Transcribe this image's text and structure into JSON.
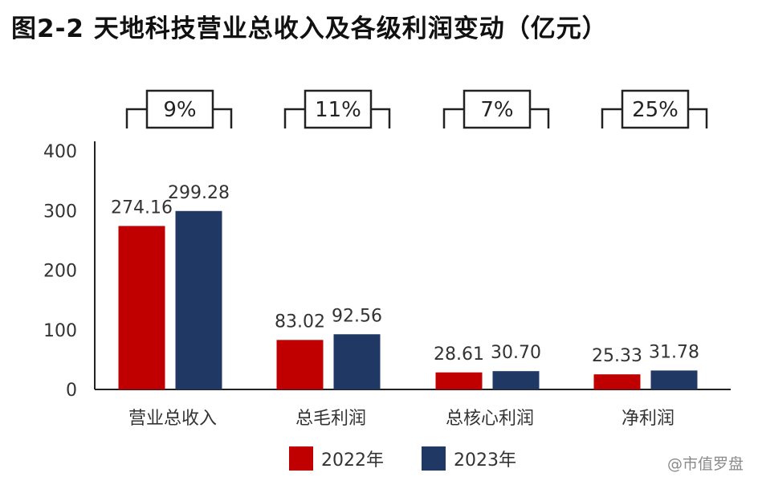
{
  "chart_data": {
    "type": "bar",
    "title": "图2-2 天地科技营业总收入及各级利润变动（亿元）",
    "categories": [
      "营业总收入",
      "总毛利润",
      "总核心利润",
      "净利润"
    ],
    "series": [
      {
        "name": "2022年",
        "values": [
          274.16,
          83.02,
          28.61,
          25.33
        ],
        "labels": [
          "274.16",
          "83.02",
          "28.61",
          "25.33"
        ],
        "color": "#c00000"
      },
      {
        "name": "2023年",
        "values": [
          299.28,
          92.56,
          30.7,
          31.78
        ],
        "labels": [
          "299.28",
          "92.56",
          "30.70",
          "31.78"
        ],
        "color": "#1f3864"
      }
    ],
    "growth_labels": [
      "9%",
      "11%",
      "7%",
      "25%"
    ],
    "ylim": [
      0,
      400
    ],
    "yticks": [
      "0",
      "100",
      "200",
      "300",
      "400"
    ],
    "xlabel": "",
    "ylabel": "",
    "grid": false,
    "legend_position": "bottom"
  },
  "watermark": "@市值罗盘"
}
